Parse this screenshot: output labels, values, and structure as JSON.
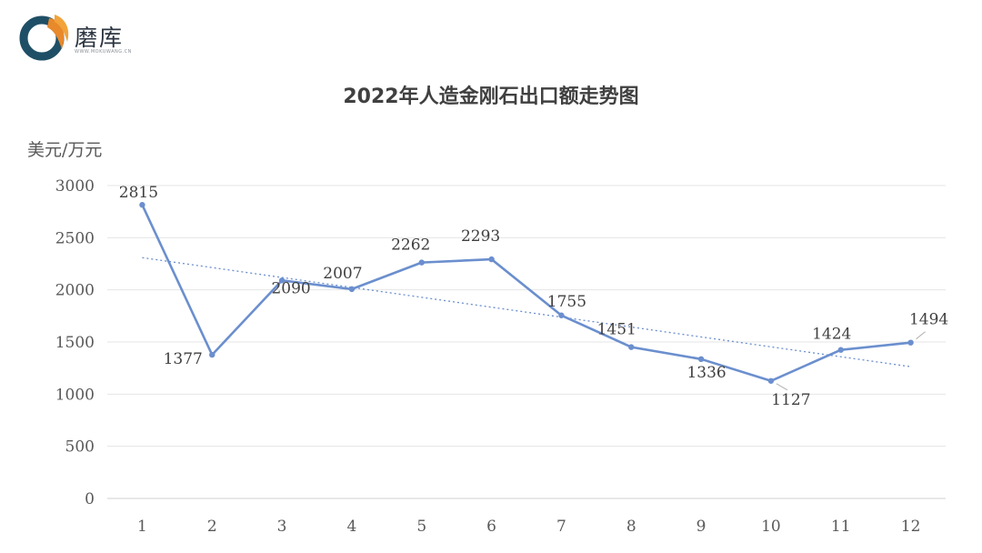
{
  "header": {
    "logo_text": "磨库",
    "logo_subtext": "WWW.MOKUWANG.CN",
    "logo_icon": "moku-logo-icon"
  },
  "chart_data": {
    "type": "line",
    "title": "2022年人造金刚石出口额走势图",
    "ylabel": "美元/万元",
    "xlabel": "",
    "categories": [
      "1",
      "2",
      "3",
      "4",
      "5",
      "6",
      "7",
      "8",
      "9",
      "10",
      "11",
      "12"
    ],
    "series": [
      {
        "values": [
          2815,
          1377,
          2090,
          2007,
          2262,
          2293,
          1755,
          1451,
          1336,
          1127,
          1424,
          1494
        ],
        "color": "#6b8fce",
        "data_labels": true
      }
    ],
    "trendline": {
      "type": "linear",
      "style": "dotted",
      "color": "#6b8fce"
    },
    "ylim": [
      0,
      3000
    ],
    "yticks": [
      0,
      500,
      1000,
      1500,
      2000,
      2500,
      3000
    ],
    "grid": "horizontal",
    "legend": "none"
  }
}
